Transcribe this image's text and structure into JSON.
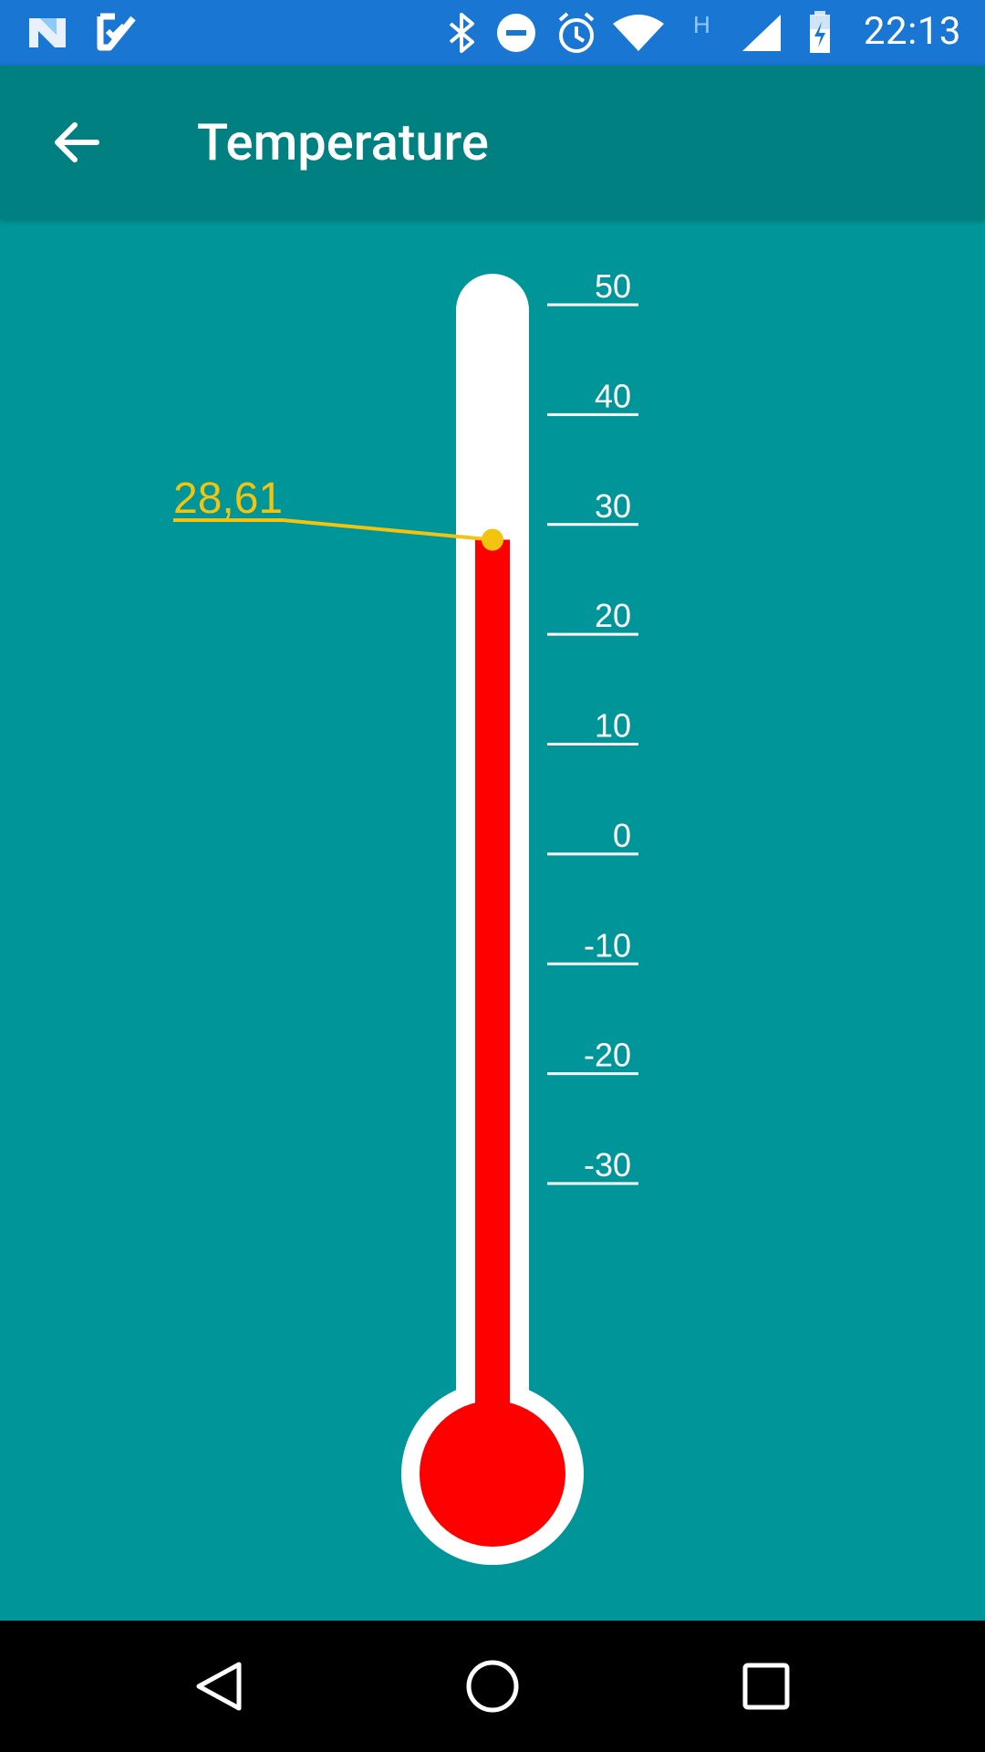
{
  "status_bar": {
    "time": "22:13",
    "network_type": "H",
    "left_icons": [
      "notification-n-icon",
      "task-check-icon"
    ],
    "right_icons": [
      "bluetooth-icon",
      "do-not-disturb-icon",
      "alarm-icon",
      "wifi-icon",
      "signal-icon",
      "battery-charging-icon"
    ]
  },
  "app_bar": {
    "title": "Temperature",
    "back_icon": "arrow-back-icon"
  },
  "thermometer": {
    "value": 28.61,
    "value_label": "28,61",
    "scale_min": -30,
    "scale_max": 50,
    "scale_step": 10,
    "tick_labels": [
      "50",
      "40",
      "30",
      "20",
      "10",
      "0",
      "-10",
      "-20",
      "-30"
    ],
    "colors": {
      "background": "#009699",
      "tube": "#ffffff",
      "mercury": "#ff0000",
      "indicator": "#f2c40f",
      "scale": "#ffffff"
    }
  },
  "nav_bar": {
    "buttons": [
      "back-triangle-icon",
      "home-circle-icon",
      "recents-square-icon"
    ]
  }
}
